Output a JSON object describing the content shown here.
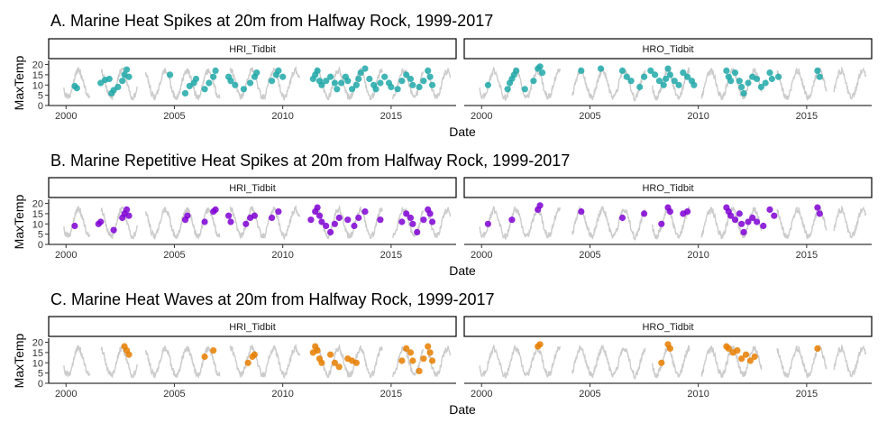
{
  "chart_data": [
    {
      "type": "scatter",
      "title": "A. Marine Heat Spikes at 20m from Halfway Rock, 1999-2017",
      "xlabel": "Date",
      "ylabel": "MaxTemp",
      "xlim": [
        1999.2,
        2018.0
      ],
      "ylim": [
        0,
        22
      ],
      "x_ticks": [
        "2000",
        "2005",
        "2010",
        "2015"
      ],
      "y_ticks": [
        "0",
        "5",
        "10",
        "15",
        "20"
      ],
      "background_line_color": "#cccccc",
      "point_color": "#20a8a8",
      "panels": [
        {
          "facet": "HRI_Tidbit",
          "points": [
            [
              2000.4,
              9.5
            ],
            [
              2000.5,
              8.5
            ],
            [
              2001.6,
              11
            ],
            [
              2001.8,
              12.5
            ],
            [
              2002.0,
              13
            ],
            [
              2002.1,
              6
            ],
            [
              2002.2,
              7.5
            ],
            [
              2002.4,
              9
            ],
            [
              2002.6,
              12
            ],
            [
              2002.7,
              15
            ],
            [
              2002.8,
              17.5
            ],
            [
              2002.9,
              14
            ],
            [
              2004.8,
              15
            ],
            [
              2005.5,
              6
            ],
            [
              2005.7,
              9.5
            ],
            [
              2005.9,
              11
            ],
            [
              2006.0,
              13
            ],
            [
              2006.4,
              8
            ],
            [
              2006.6,
              11
            ],
            [
              2006.8,
              14
            ],
            [
              2006.9,
              17
            ],
            [
              2007.5,
              14
            ],
            [
              2007.6,
              12
            ],
            [
              2007.8,
              10
            ],
            [
              2008.2,
              8
            ],
            [
              2008.5,
              11
            ],
            [
              2008.7,
              14
            ],
            [
              2008.8,
              16
            ],
            [
              2009.5,
              12
            ],
            [
              2009.7,
              15
            ],
            [
              2009.8,
              17
            ],
            [
              2010.0,
              14
            ],
            [
              2011.4,
              13
            ],
            [
              2011.5,
              15
            ],
            [
              2011.6,
              17
            ],
            [
              2011.7,
              12
            ],
            [
              2011.8,
              10
            ],
            [
              2012.0,
              12
            ],
            [
              2012.2,
              14
            ],
            [
              2012.4,
              11
            ],
            [
              2012.5,
              8
            ],
            [
              2012.7,
              11
            ],
            [
              2012.9,
              14
            ],
            [
              2013.0,
              12
            ],
            [
              2013.2,
              8
            ],
            [
              2013.4,
              10
            ],
            [
              2013.5,
              13
            ],
            [
              2013.6,
              16
            ],
            [
              2013.8,
              18
            ],
            [
              2014.0,
              13
            ],
            [
              2014.2,
              10
            ],
            [
              2014.3,
              8
            ],
            [
              2014.5,
              11
            ],
            [
              2014.7,
              14
            ],
            [
              2014.9,
              11
            ],
            [
              2015.0,
              9
            ],
            [
              2015.3,
              8
            ],
            [
              2015.5,
              12
            ],
            [
              2015.7,
              15
            ],
            [
              2015.9,
              13
            ],
            [
              2016.0,
              10
            ],
            [
              2016.3,
              9
            ],
            [
              2016.5,
              12
            ],
            [
              2016.7,
              17
            ],
            [
              2016.8,
              14
            ],
            [
              2016.9,
              10
            ]
          ]
        },
        {
          "facet": "HRO_Tidbit",
          "points": [
            [
              2000.3,
              10
            ],
            [
              2001.2,
              8
            ],
            [
              2001.3,
              11
            ],
            [
              2001.4,
              13
            ],
            [
              2001.5,
              15
            ],
            [
              2001.6,
              17
            ],
            [
              2002.0,
              8
            ],
            [
              2002.4,
              12
            ],
            [
              2002.6,
              18
            ],
            [
              2002.7,
              19
            ],
            [
              2002.8,
              16
            ],
            [
              2004.6,
              17
            ],
            [
              2005.5,
              18
            ],
            [
              2006.5,
              17
            ],
            [
              2006.7,
              14
            ],
            [
              2006.9,
              12
            ],
            [
              2007.3,
              9
            ],
            [
              2007.5,
              14
            ],
            [
              2007.8,
              17
            ],
            [
              2008.0,
              15
            ],
            [
              2008.2,
              12
            ],
            [
              2008.4,
              10
            ],
            [
              2008.5,
              13
            ],
            [
              2008.6,
              18
            ],
            [
              2008.7,
              15
            ],
            [
              2008.9,
              12
            ],
            [
              2009.1,
              10
            ],
            [
              2009.3,
              16
            ],
            [
              2009.5,
              14
            ],
            [
              2009.7,
              12
            ],
            [
              2009.8,
              10
            ],
            [
              2011.3,
              17
            ],
            [
              2011.4,
              14
            ],
            [
              2011.5,
              12
            ],
            [
              2011.7,
              16
            ],
            [
              2011.9,
              12
            ],
            [
              2012.0,
              9
            ],
            [
              2012.1,
              6
            ],
            [
              2012.3,
              11
            ],
            [
              2012.5,
              14
            ],
            [
              2012.7,
              13
            ],
            [
              2012.9,
              9
            ],
            [
              2013.1,
              11
            ],
            [
              2013.3,
              16
            ],
            [
              2013.4,
              13
            ],
            [
              2013.7,
              14
            ],
            [
              2015.5,
              17
            ],
            [
              2015.6,
              14
            ]
          ]
        }
      ]
    },
    {
      "type": "scatter",
      "title": "B. Marine Repetitive Heat Spikes at 20m from Halfway Rock, 1999-2017",
      "xlabel": "Date",
      "ylabel": "MaxTemp",
      "xlim": [
        1999.2,
        2018.0
      ],
      "ylim": [
        0,
        22
      ],
      "x_ticks": [
        "2000",
        "2005",
        "2010",
        "2015"
      ],
      "y_ticks": [
        "0",
        "5",
        "10",
        "15",
        "20"
      ],
      "background_line_color": "#cccccc",
      "point_color": "#7f00d4",
      "panels": [
        {
          "facet": "HRI_Tidbit",
          "points": [
            [
              2000.4,
              9
            ],
            [
              2001.5,
              10
            ],
            [
              2001.6,
              11
            ],
            [
              2002.2,
              7
            ],
            [
              2002.6,
              13
            ],
            [
              2002.7,
              15
            ],
            [
              2002.8,
              17
            ],
            [
              2002.9,
              14
            ],
            [
              2005.5,
              12
            ],
            [
              2005.6,
              14
            ],
            [
              2006.4,
              11
            ],
            [
              2006.8,
              16
            ],
            [
              2006.9,
              17
            ],
            [
              2007.5,
              14
            ],
            [
              2007.6,
              11
            ],
            [
              2008.3,
              10
            ],
            [
              2008.5,
              13
            ],
            [
              2008.7,
              14
            ],
            [
              2009.5,
              13
            ],
            [
              2009.8,
              16
            ],
            [
              2011.3,
              12
            ],
            [
              2011.5,
              16
            ],
            [
              2011.6,
              18
            ],
            [
              2011.7,
              14
            ],
            [
              2011.8,
              11
            ],
            [
              2012.0,
              9
            ],
            [
              2012.2,
              6
            ],
            [
              2012.4,
              10
            ],
            [
              2012.6,
              13
            ],
            [
              2013.0,
              12
            ],
            [
              2013.3,
              9
            ],
            [
              2013.5,
              13
            ],
            [
              2013.8,
              16
            ],
            [
              2014.5,
              12
            ],
            [
              2015.5,
              11
            ],
            [
              2015.7,
              15
            ],
            [
              2015.9,
              13
            ],
            [
              2016.0,
              10
            ],
            [
              2016.2,
              6
            ],
            [
              2016.5,
              12
            ],
            [
              2016.7,
              17
            ],
            [
              2016.8,
              15
            ],
            [
              2016.9,
              11
            ]
          ]
        },
        {
          "facet": "HRO_Tidbit",
          "points": [
            [
              2000.3,
              10
            ],
            [
              2001.4,
              12
            ],
            [
              2002.6,
              17
            ],
            [
              2002.7,
              19
            ],
            [
              2004.6,
              16
            ],
            [
              2006.5,
              13
            ],
            [
              2007.5,
              15
            ],
            [
              2008.3,
              10
            ],
            [
              2008.6,
              18
            ],
            [
              2008.7,
              16
            ],
            [
              2009.3,
              15
            ],
            [
              2009.5,
              16
            ],
            [
              2011.3,
              18
            ],
            [
              2011.4,
              16
            ],
            [
              2011.5,
              14
            ],
            [
              2011.7,
              12
            ],
            [
              2011.9,
              15
            ],
            [
              2012.0,
              10
            ],
            [
              2012.1,
              6
            ],
            [
              2012.3,
              11
            ],
            [
              2012.5,
              13
            ],
            [
              2012.7,
              11
            ],
            [
              2013.0,
              9
            ],
            [
              2013.3,
              17
            ],
            [
              2013.5,
              14
            ],
            [
              2015.5,
              18
            ],
            [
              2015.6,
              15
            ]
          ]
        }
      ]
    },
    {
      "type": "scatter",
      "title": "C. Marine Heat Waves at 20m from Halfway Rock, 1999-2017",
      "xlabel": "Date",
      "ylabel": "MaxTemp",
      "xlim": [
        1999.2,
        2018.0
      ],
      "ylim": [
        0,
        22
      ],
      "x_ticks": [
        "2000",
        "2005",
        "2010",
        "2015"
      ],
      "y_ticks": [
        "0",
        "5",
        "10",
        "15",
        "20"
      ],
      "background_line_color": "#cccccc",
      "point_color": "#e67e00",
      "panels": [
        {
          "facet": "HRI_Tidbit",
          "points": [
            [
              2002.7,
              18
            ],
            [
              2002.8,
              16
            ],
            [
              2002.9,
              14
            ],
            [
              2006.4,
              13
            ],
            [
              2006.8,
              16
            ],
            [
              2008.4,
              10
            ],
            [
              2008.6,
              13
            ],
            [
              2008.7,
              14
            ],
            [
              2011.4,
              15
            ],
            [
              2011.5,
              18
            ],
            [
              2011.6,
              16
            ],
            [
              2011.7,
              12
            ],
            [
              2011.8,
              10
            ],
            [
              2012.2,
              14
            ],
            [
              2012.4,
              10
            ],
            [
              2012.6,
              8
            ],
            [
              2013.0,
              12
            ],
            [
              2013.2,
              11
            ],
            [
              2013.4,
              10
            ],
            [
              2015.5,
              11
            ],
            [
              2015.7,
              17
            ],
            [
              2015.9,
              15
            ],
            [
              2016.0,
              11
            ],
            [
              2016.3,
              6
            ],
            [
              2016.5,
              12
            ],
            [
              2016.7,
              18
            ],
            [
              2016.8,
              15
            ],
            [
              2016.9,
              11
            ]
          ]
        },
        {
          "facet": "HRO_Tidbit",
          "points": [
            [
              2002.6,
              18
            ],
            [
              2002.7,
              19
            ],
            [
              2008.3,
              10
            ],
            [
              2008.6,
              19
            ],
            [
              2008.7,
              17
            ],
            [
              2011.3,
              18
            ],
            [
              2011.4,
              17
            ],
            [
              2011.6,
              15
            ],
            [
              2011.8,
              16
            ],
            [
              2012.0,
              12
            ],
            [
              2012.2,
              14
            ],
            [
              2012.4,
              11
            ],
            [
              2012.6,
              13
            ],
            [
              2015.5,
              17
            ]
          ]
        }
      ]
    }
  ]
}
